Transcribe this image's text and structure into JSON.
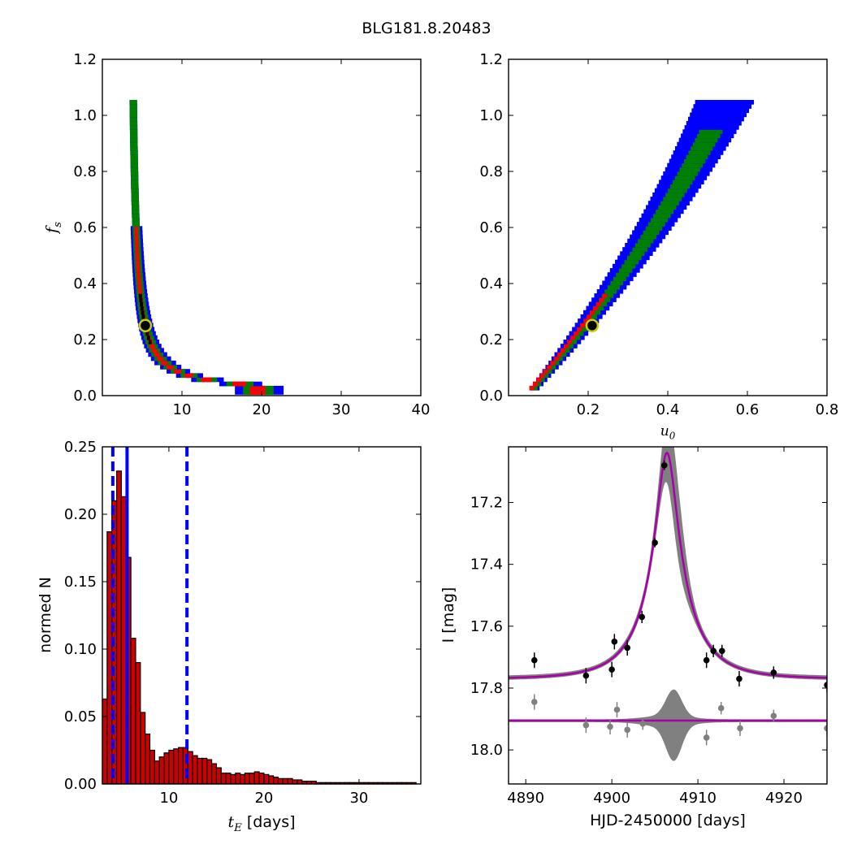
{
  "title": "BLG181.8.20483",
  "chart_data": [
    {
      "type": "heatmap",
      "ylabel_sym": "f",
      "ylabel_sub": "s",
      "xlim": [
        0,
        40
      ],
      "ylim": [
        0,
        1.2
      ],
      "xticks": [
        "10",
        "20",
        "30",
        "40"
      ],
      "yticks": [
        "0.0",
        "0.2",
        "0.4",
        "0.6",
        "0.8",
        "1.0",
        "1.2"
      ],
      "colors": {
        "outer": "#0000ff",
        "middle": "#008000",
        "inner": "#ff0000",
        "best": "#000000"
      },
      "marker": {
        "x": 5.4,
        "y": 0.25
      },
      "contour_curve": "x = 0.48/y + 3.4",
      "contour_upper_clip_y": 1.05
    },
    {
      "type": "heatmap",
      "xlabel_sym": "u",
      "xlabel_sub": "0",
      "xlim": [
        0,
        0.8
      ],
      "ylim": [
        0,
        1.2
      ],
      "xticks": [
        "0.2",
        "0.4",
        "0.6",
        "0.8"
      ],
      "yticks": [
        "0.0",
        "0.2",
        "0.4",
        "0.6",
        "0.8",
        "1.0",
        "1.2"
      ],
      "colors": {
        "outer": "#0000ff",
        "middle": "#008000",
        "inner": "#ff0000"
      },
      "marker": {
        "x": 0.21,
        "y": 0.25
      }
    },
    {
      "type": "bar",
      "xlabel_sym": "t",
      "xlabel_sub": "E",
      "xlabel_unit": "[days]",
      "ylabel": "normed N",
      "xlim": [
        3,
        36.5
      ],
      "ylim": [
        0,
        0.25
      ],
      "xticks": [
        "10",
        "20",
        "30"
      ],
      "yticks": [
        "0.00",
        "0.05",
        "0.10",
        "0.15",
        "0.20",
        "0.25"
      ],
      "bar_color": "#cc0000",
      "bin_start": 3.0,
      "bin_width": 0.5,
      "values": [
        0.063,
        0.187,
        0.21,
        0.232,
        0.213,
        0.168,
        0.108,
        0.09,
        0.053,
        0.037,
        0.025,
        0.017,
        0.02,
        0.023,
        0.025,
        0.026,
        0.027,
        0.027,
        0.024,
        0.021,
        0.019,
        0.019,
        0.018,
        0.015,
        0.012,
        0.008,
        0.008,
        0.007,
        0.008,
        0.007,
        0.008,
        0.008,
        0.009,
        0.008,
        0.007,
        0.006,
        0.005,
        0.004,
        0.004,
        0.004,
        0.003,
        0.003,
        0.002,
        0.002,
        0.002,
        0.001,
        0.001,
        0.001,
        0.001,
        0.001,
        0.001,
        0.001,
        0.001,
        0.001,
        0.001,
        0.001,
        0.001,
        0.001,
        0.001,
        0.001,
        0.001,
        0.001,
        0.001,
        0.001,
        0.001,
        0.001
      ],
      "vlines": [
        {
          "x": 4.1,
          "style": "dashed"
        },
        {
          "x": 5.6,
          "style": "solid"
        },
        {
          "x": 11.9,
          "style": "dashed"
        }
      ],
      "vline_color": "#0000ff"
    },
    {
      "type": "line",
      "xlabel": "HJD-2450000 [days]",
      "ylabel": "I [mag]",
      "xlim": [
        4888,
        4925
      ],
      "ylim": [
        18.11,
        17.02
      ],
      "xticks": [
        "4890",
        "4900",
        "4910",
        "4920"
      ],
      "yticks": [
        "17.2",
        "17.4",
        "17.6",
        "17.8",
        "18.0"
      ],
      "model_color": "#aa00aa",
      "band_color": "#808080",
      "model": {
        "t0": 4906.4,
        "u0": 0.21,
        "tE": 5.6,
        "fs": 0.25,
        "I_base": 17.77
      },
      "points": [
        {
          "x": 4891.0,
          "y": 17.71,
          "err": 0.025
        },
        {
          "x": 4897.0,
          "y": 17.76,
          "err": 0.025
        },
        {
          "x": 4900.3,
          "y": 17.65,
          "err": 0.025
        },
        {
          "x": 4901.8,
          "y": 17.67,
          "err": 0.025
        },
        {
          "x": 4900.0,
          "y": 17.74,
          "err": 0.025
        },
        {
          "x": 4903.5,
          "y": 17.57,
          "err": 0.02
        },
        {
          "x": 4905.0,
          "y": 17.33,
          "err": 0.015
        },
        {
          "x": 4906.1,
          "y": 17.08,
          "err": 0.015
        },
        {
          "x": 4911.0,
          "y": 17.71,
          "err": 0.025
        },
        {
          "x": 4911.8,
          "y": 17.68,
          "err": 0.02
        },
        {
          "x": 4912.8,
          "y": 17.68,
          "err": 0.02
        },
        {
          "x": 4914.8,
          "y": 17.77,
          "err": 0.025
        },
        {
          "x": 4918.8,
          "y": 17.75,
          "err": 0.02
        },
        {
          "x": 4925.0,
          "y": 17.79,
          "err": 0.025
        }
      ],
      "residual_offset": 17.905,
      "residuals": [
        {
          "x": 4891.0,
          "y": 17.845,
          "err": 0.025
        },
        {
          "x": 4897.0,
          "y": 17.92,
          "err": 0.025
        },
        {
          "x": 4899.8,
          "y": 17.925,
          "err": 0.025
        },
        {
          "x": 4900.6,
          "y": 17.87,
          "err": 0.025
        },
        {
          "x": 4901.8,
          "y": 17.935,
          "err": 0.025
        },
        {
          "x": 4903.6,
          "y": 17.915,
          "err": 0.02
        },
        {
          "x": 4911.0,
          "y": 17.96,
          "err": 0.025
        },
        {
          "x": 4912.7,
          "y": 17.865,
          "err": 0.02
        },
        {
          "x": 4914.9,
          "y": 17.93,
          "err": 0.025
        },
        {
          "x": 4918.8,
          "y": 17.89,
          "err": 0.02
        },
        {
          "x": 4925.0,
          "y": 17.93,
          "err": 0.025
        }
      ]
    }
  ]
}
